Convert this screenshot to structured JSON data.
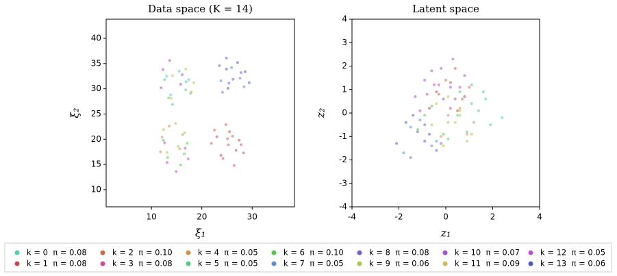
{
  "chart_data": [
    {
      "type": "scatter",
      "title": "Data space (K = 14)",
      "xlabel": "ξ₁",
      "ylabel": "ξ₂",
      "xlim": [
        1,
        38.4
      ],
      "ylim": [
        6.6,
        43.8
      ],
      "xticks": [
        10,
        20,
        30
      ],
      "yticks": [
        10,
        15,
        20,
        25,
        30,
        35,
        40
      ],
      "series": [
        {
          "name": "k = 0  π = 0.08",
          "color": "#4ecdb0",
          "x": [
            13,
            16.8,
            15.5,
            13.8,
            17.4
          ],
          "y": [
            32.5,
            29.8,
            33.5,
            28.8,
            31.8
          ]
        },
        {
          "name": "k = 1  π = 0.08",
          "color": "#c9465a",
          "x": [
            23,
            26.8,
            25.5,
            23.8,
            27.4
          ],
          "y": [
            20.5,
            17.8,
            21.5,
            16.8,
            19.8
          ]
        },
        {
          "name": "k = 2  π = 0.10",
          "color": "#d0684a",
          "x": [
            22.5,
            25.3,
            24.8,
            21.9,
            26.1
          ],
          "y": [
            21.8,
            18.9,
            22.9,
            19.2,
            20.6
          ]
        },
        {
          "name": "k = 3  π = 0.08",
          "color": "#cc4f9a",
          "x": [
            24.2,
            27.8,
            26.4,
            25.1,
            28.3
          ],
          "y": [
            16.2,
            18.9,
            14.8,
            20.1,
            17.3
          ]
        },
        {
          "name": "k = 4  π = 0.05",
          "color": "#d2944d",
          "x": [
            12.1,
            15.6,
            13.5,
            16.2,
            11.8
          ],
          "y": [
            20.4,
            18.1,
            22.6,
            20.9,
            17.5
          ]
        },
        {
          "name": "k = 5  π = 0.05",
          "color": "#4fcb8a",
          "x": [
            13.4,
            16.9,
            14.2,
            17.8,
            12.6
          ],
          "y": [
            28.2,
            31.4,
            26.9,
            29.1,
            31.8
          ]
        },
        {
          "name": "k = 6  π = 0.10",
          "color": "#55c94f",
          "x": [
            13.2,
            17.1,
            15.8,
            12.4,
            16.5
          ],
          "y": [
            16.4,
            19.2,
            14.9,
            19.8,
            17.1
          ]
        },
        {
          "name": "k = 7  π = 0.05",
          "color": "#5a8fd0",
          "x": [
            24.1,
            27.6,
            25.9,
            28.4,
            23.8
          ],
          "y": [
            29.3,
            32.1,
            34.2,
            30.4,
            31.6
          ]
        },
        {
          "name": "k = 8  π = 0.08",
          "color": "#7a5cd0",
          "x": [
            23.5,
            26.2,
            24.9,
            27.8,
            25.4
          ],
          "y": [
            34.6,
            31.9,
            36.1,
            33.2,
            31.1
          ]
        },
        {
          "name": "k = 9  π = 0.06",
          "color": "#a6c94f",
          "x": [
            12.4,
            15.3,
            13.1,
            16.6,
            14.8
          ],
          "y": [
            21.9,
            18.6,
            17.4,
            21.3,
            23.1
          ]
        },
        {
          "name": "k = 10  π = 0.07",
          "color": "#a84fd0",
          "x": [
            12.3,
            15.8,
            13.6,
            16.1,
            11.9
          ],
          "y": [
            33.8,
            30.9,
            35.6,
            32.8,
            30.2
          ]
        },
        {
          "name": "k = 11  π = 0.09",
          "color": "#cdbd4f",
          "x": [
            14.2,
            17.9,
            16.8,
            13.9,
            18.4
          ],
          "y": [
            32.6,
            29.4,
            33.9,
            28.1,
            31.2
          ]
        },
        {
          "name": "k = 12  π = 0.05",
          "color": "#c14fd0",
          "x": [
            13.1,
            16.7,
            14.9,
            17.3,
            12.6
          ],
          "y": [
            15.4,
            18.2,
            13.6,
            16.1,
            19.3
          ]
        },
        {
          "name": "k = 13  π = 0.06",
          "color": "#4f5ac9",
          "x": [
            25.2,
            28.6,
            27.1,
            29.4,
            24.9
          ],
          "y": [
            30.1,
            33.4,
            35.2,
            31.2,
            33.9
          ]
        }
      ]
    },
    {
      "type": "scatter",
      "title": "Latent space",
      "xlabel": "z₁",
      "ylabel": "z₂",
      "xlim": [
        -4,
        4
      ],
      "ylim": [
        -4,
        4
      ],
      "xticks": [
        -4,
        -2,
        0,
        2,
        4
      ],
      "yticks": [
        -4,
        -3,
        -2,
        -1,
        0,
        1,
        2,
        3,
        4
      ],
      "series": [
        {
          "color": "#4ecdb0",
          "x": [
            1.1,
            1.9,
            1.6,
            2.4,
            0.9
          ],
          "y": [
            0.4,
            -0.5,
            0.9,
            -0.2,
            -0.8
          ]
        },
        {
          "color": "#c9465a",
          "x": [
            -0.4,
            0.5,
            0.2,
            -0.7,
            0.8
          ],
          "y": [
            0.9,
            0.1,
            1.3,
            0.2,
            0.7
          ]
        },
        {
          "color": "#d0684a",
          "x": [
            0.0,
            0.7,
            0.4,
            -0.3,
            1.0
          ],
          "y": [
            1.4,
            0.6,
            1.9,
            0.8,
            1.1
          ]
        },
        {
          "color": "#cc4f9a",
          "x": [
            -0.8,
            0.2,
            -0.3,
            -1.1,
            0.4
          ],
          "y": [
            0.8,
            0.2,
            1.2,
            0.1,
            0.6
          ]
        },
        {
          "color": "#d2944d",
          "x": [
            0.1,
            0.9,
            0.6,
            -0.2,
            1.2
          ],
          "y": [
            -0.1,
            -0.9,
            0.2,
            -1.0,
            -0.4
          ]
        },
        {
          "color": "#4fcb8a",
          "x": [
            0.6,
            1.4,
            1.1,
            0.5,
            1.7
          ],
          "y": [
            0.9,
            0.1,
            1.2,
            -0.1,
            0.6
          ]
        },
        {
          "color": "#55c94f",
          "x": [
            -0.9,
            -0.1,
            -0.6,
            -1.2,
            0.1
          ],
          "y": [
            -0.1,
            -0.9,
            0.3,
            -0.7,
            -1.1
          ]
        },
        {
          "color": "#5a8fd0",
          "x": [
            -1.5,
            -0.6,
            -1.1,
            -1.8,
            -0.4
          ],
          "y": [
            -0.6,
            -1.4,
            -0.3,
            -1.7,
            -1.2
          ]
        },
        {
          "color": "#7a5cd0",
          "x": [
            -1.2,
            -0.4,
            -0.9,
            -1.5,
            -0.2
          ],
          "y": [
            -0.8,
            -1.6,
            -0.5,
            -1.9,
            -1.3
          ]
        },
        {
          "color": "#a6c94f",
          "x": [
            0.1,
            0.9,
            0.6,
            -0.1,
            1.1
          ],
          "y": [
            -0.4,
            -1.2,
            -0.1,
            -1.4,
            -0.9
          ]
        },
        {
          "color": "#a84fd0",
          "x": [
            -0.9,
            -0.1,
            -0.6,
            -1.3,
            0.2
          ],
          "y": [
            1.4,
            0.6,
            1.8,
            0.7,
            1.1
          ]
        },
        {
          "color": "#cdbd4f",
          "x": [
            -0.4,
            0.4,
            0.1,
            -0.6,
            0.6
          ],
          "y": [
            0.4,
            -0.4,
            0.7,
            -0.5,
            0.1
          ]
        },
        {
          "color": "#c14fd0",
          "x": [
            -0.2,
            0.6,
            0.3,
            -0.5,
            0.8
          ],
          "y": [
            1.9,
            1.1,
            2.3,
            1.2,
            1.6
          ]
        },
        {
          "color": "#4f5ac9",
          "x": [
            -1.7,
            -0.9,
            -1.4,
            -2.1,
            -0.7
          ],
          "y": [
            -0.4,
            -1.2,
            -0.1,
            -1.3,
            -0.9
          ]
        }
      ]
    }
  ]
}
